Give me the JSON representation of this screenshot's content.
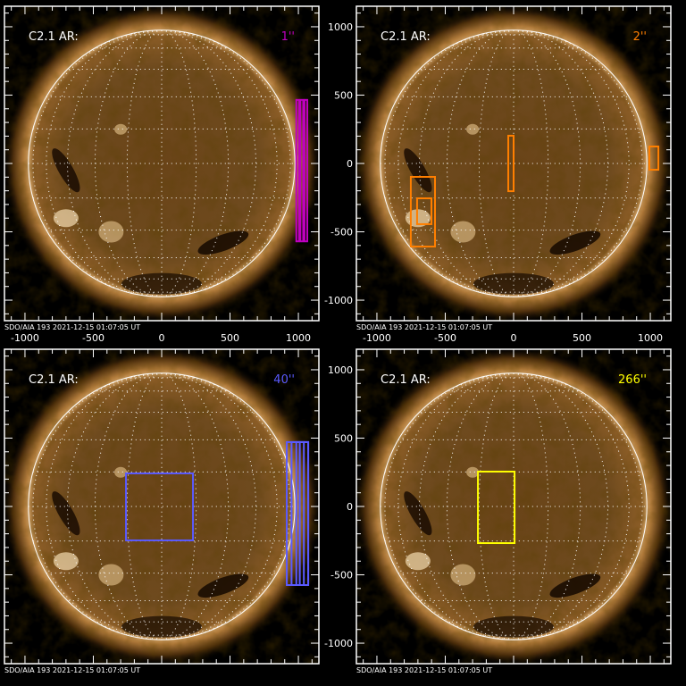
{
  "chart_data": [
    {
      "type": "image",
      "label": "C2.1 AR:",
      "size_label": "1''",
      "color": "#c000c0",
      "footer": "SDO/AIA 193  2021-12-15 01:07:05 UT",
      "xlim": [
        -1150,
        1150
      ],
      "ylim": [
        -1150,
        1150
      ],
      "xticks": [
        "-1000",
        "-500",
        "0",
        "500",
        "1000"
      ],
      "yticks": [],
      "boxes": [
        {
          "x": [
            985,
            1005
          ],
          "y": [
            -570,
            465
          ]
        },
        {
          "x": [
            1015,
            1035
          ],
          "y": [
            -570,
            465
          ]
        },
        {
          "x": [
            1045,
            1065
          ],
          "y": [
            -570,
            465
          ]
        }
      ]
    },
    {
      "type": "image",
      "label": "C2.1 AR:",
      "size_label": "2''",
      "color": "#ff7f00",
      "footer": "SDO/AIA 193  2021-12-15 01:07:05 UT",
      "xlim": [
        -1150,
        1150
      ],
      "ylim": [
        -1150,
        1150
      ],
      "xticks": [
        "-1000",
        "-500",
        "0",
        "500",
        "1000"
      ],
      "yticks": [
        "1000",
        "500",
        "0",
        "-500",
        "-1000"
      ],
      "boxes": [
        {
          "x": [
            -752,
            -575
          ],
          "y": [
            -608,
            -98
          ]
        },
        {
          "x": [
            -706,
            -601
          ],
          "y": [
            -444,
            -255
          ]
        },
        {
          "x": [
            -39,
            0
          ],
          "y": [
            -203,
            203
          ]
        },
        {
          "x": [
            993,
            1059
          ],
          "y": [
            -46,
            124
          ]
        }
      ]
    },
    {
      "type": "image",
      "label": "C2.1 AR:",
      "size_label": "40''",
      "color": "#5a5aff",
      "footer": "SDO/AIA 193  2021-12-15 01:07:05 UT",
      "xlim": [
        -1150,
        1150
      ],
      "ylim": [
        -1150,
        1150
      ],
      "xticks": [],
      "yticks": [],
      "boxes": [
        {
          "x": [
            -261,
            229
          ],
          "y": [
            -248,
            242
          ]
        },
        {
          "x": [
            915,
            1010
          ],
          "y": [
            -575,
            471
          ]
        },
        {
          "x": [
            950,
            1040
          ],
          "y": [
            -575,
            471
          ]
        },
        {
          "x": [
            985,
            1072
          ],
          "y": [
            -575,
            471
          ]
        },
        {
          "x": [
            1010,
            1072
          ],
          "y": [
            -575,
            471
          ]
        }
      ]
    },
    {
      "type": "image",
      "label": "C2.1 AR:",
      "size_label": "266''",
      "color": "#ffff00",
      "footer": "SDO/AIA 193  2021-12-15 01:07:05 UT",
      "xlim": [
        -1150,
        1150
      ],
      "ylim": [
        -1150,
        1150
      ],
      "xticks": [],
      "yticks": [
        "1000",
        "500",
        "0",
        "-500",
        "-1000"
      ],
      "boxes": [
        {
          "x": [
            -261,
            7
          ],
          "y": [
            -268,
            255
          ]
        }
      ]
    }
  ]
}
